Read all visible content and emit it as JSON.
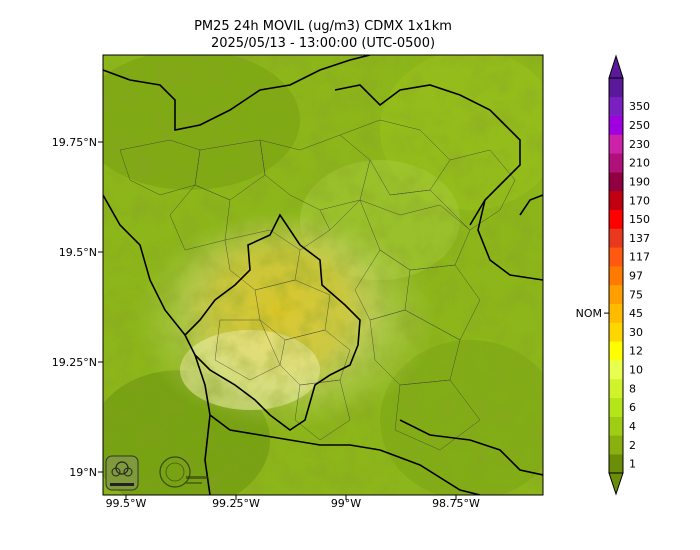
{
  "map": {
    "title_line1": "PM25 24h MOVIL (ug/m3) CDMX 1x1km",
    "title_line2": "2025/05/13 - 13:00:00 (UTC-0500)",
    "lat_ticks": [
      "19.75°N",
      "19.5°N",
      "19.25°N",
      "19°N"
    ],
    "lon_ticks": [
      "99.5°W",
      "99.25°W",
      "99°W",
      "98.75°W"
    ],
    "logos": [
      "sedema-logo",
      "ciudad-de-mexico-logo"
    ]
  },
  "colorbar": {
    "nom_label": "NOM",
    "nom_value": 45,
    "levels": [
      "1",
      "2",
      "4",
      "6",
      "8",
      "10",
      "12",
      "30",
      "45",
      "75",
      "97",
      "117",
      "137",
      "150",
      "170",
      "190",
      "210",
      "230",
      "250",
      "350"
    ],
    "colors": [
      "#6b8e08",
      "#8ab010",
      "#9fcc14",
      "#b4e61a",
      "#cff22a",
      "#e8ff50",
      "#ffff00",
      "#ffd700",
      "#ffbb00",
      "#ff9e00",
      "#ff7a00",
      "#ff5a10",
      "#e8381e",
      "#ff0000",
      "#c00010",
      "#900040",
      "#b0107a",
      "#cc22aa",
      "#a000e0",
      "#7a20c0",
      "#5a189a"
    ]
  }
}
